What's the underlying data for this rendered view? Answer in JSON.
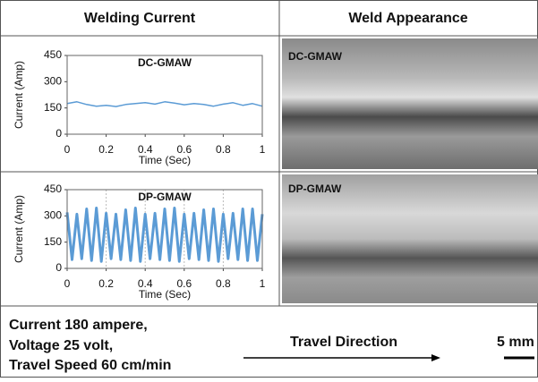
{
  "header": {
    "left": "Welding Current",
    "right": "Weld Appearance"
  },
  "chart_data": [
    {
      "type": "line",
      "title": "DC-GMAW",
      "x_label": "Time (Sec)",
      "y_label": "Current (Amp)",
      "color": "#5b9bd5",
      "x": [
        0,
        0.05,
        0.1,
        0.15,
        0.2,
        0.25,
        0.3,
        0.35,
        0.4,
        0.45,
        0.5,
        0.55,
        0.6,
        0.65,
        0.7,
        0.75,
        0.8,
        0.85,
        0.9,
        0.95,
        1
      ],
      "values": [
        175,
        185,
        170,
        160,
        165,
        158,
        170,
        175,
        180,
        172,
        185,
        178,
        168,
        175,
        170,
        160,
        172,
        180,
        165,
        175,
        160
      ],
      "xlim": [
        0,
        1
      ],
      "xticks": [
        0,
        0.2,
        0.4,
        0.6,
        0.8,
        1
      ],
      "ylim": [
        0,
        450
      ],
      "yticks": [
        0,
        150,
        300,
        450
      ],
      "grid": false
    },
    {
      "type": "line",
      "title": "DP-GMAW",
      "x_label": "Time (Sec)",
      "y_label": "Current (Amp)",
      "color": "#5b9bd5",
      "x": [
        0,
        0.025,
        0.05,
        0.075,
        0.1,
        0.125,
        0.15,
        0.175,
        0.2,
        0.225,
        0.25,
        0.275,
        0.3,
        0.325,
        0.35,
        0.375,
        0.4,
        0.425,
        0.45,
        0.475,
        0.5,
        0.525,
        0.55,
        0.575,
        0.6,
        0.625,
        0.65,
        0.675,
        0.7,
        0.725,
        0.75,
        0.775,
        0.8,
        0.825,
        0.85,
        0.875,
        0.9,
        0.925,
        0.95,
        0.975,
        1
      ],
      "values": [
        320,
        50,
        310,
        55,
        340,
        45,
        345,
        40,
        315,
        55,
        310,
        50,
        335,
        45,
        345,
        40,
        310,
        55,
        315,
        50,
        340,
        45,
        345,
        40,
        310,
        55,
        315,
        50,
        335,
        45,
        340,
        40,
        310,
        55,
        315,
        50,
        340,
        45,
        340,
        45,
        310
      ],
      "xlim": [
        0,
        1
      ],
      "xticks": [
        0,
        0.2,
        0.4,
        0.6,
        0.8,
        1
      ],
      "ylim": [
        0,
        450
      ],
      "yticks": [
        0,
        150,
        300,
        450
      ],
      "grid": true
    }
  ],
  "photos": [
    {
      "label": "DC-GMAW"
    },
    {
      "label": "DP-GMAW"
    }
  ],
  "footer": {
    "lines": [
      "Current 180 ampere,",
      "Voltage 25 volt,",
      "Travel Speed 60 cm/min"
    ],
    "direction": "Travel Direction",
    "scale": "5 mm"
  }
}
